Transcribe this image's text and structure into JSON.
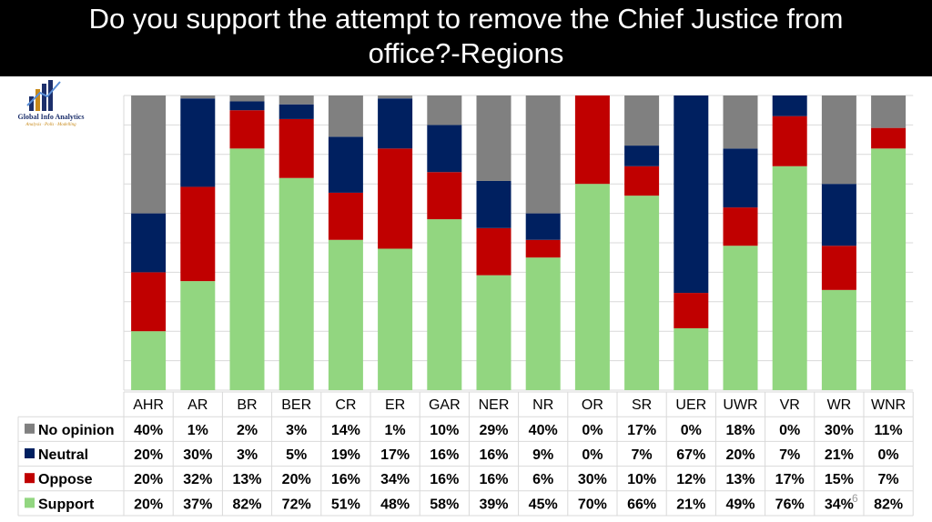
{
  "title": {
    "line1": "Do you support the attempt to remove the Chief Justice from",
    "line2": "office?-Regions"
  },
  "logo": {
    "name": "Global Info Analytics",
    "tagline": "Analysis · Polls · Modelling"
  },
  "page_number": "6",
  "colors": {
    "support": "#92d680",
    "oppose": "#c00000",
    "neutral": "#002060",
    "no_opinion": "#808080",
    "gridline": "#d9d9d9",
    "title_bg": "#000000"
  },
  "chart_data": {
    "type": "bar",
    "stacked": true,
    "percent_stacked": true,
    "title": "Do you support the attempt to remove the Chief Justice from office?-Regions",
    "categories": [
      "AHR",
      "AR",
      "BR",
      "BER",
      "CR",
      "ER",
      "GAR",
      "NER",
      "NR",
      "OR",
      "SR",
      "UER",
      "UWR",
      "VR",
      "WR",
      "WNR"
    ],
    "series": [
      {
        "name": "Support",
        "color": "#92d680",
        "values": [
          20,
          37,
          82,
          72,
          51,
          48,
          58,
          39,
          45,
          70,
          66,
          21,
          49,
          76,
          34,
          82
        ]
      },
      {
        "name": "Oppose",
        "color": "#c00000",
        "values": [
          20,
          32,
          13,
          20,
          16,
          34,
          16,
          16,
          6,
          30,
          10,
          12,
          13,
          17,
          15,
          7
        ]
      },
      {
        "name": "Neutral",
        "color": "#002060",
        "values": [
          20,
          30,
          3,
          5,
          19,
          17,
          16,
          16,
          9,
          0,
          7,
          67,
          20,
          7,
          21,
          0
        ]
      },
      {
        "name": "No opinion",
        "color": "#808080",
        "values": [
          40,
          1,
          2,
          3,
          14,
          1,
          10,
          29,
          40,
          0,
          17,
          0,
          18,
          0,
          30,
          11
        ]
      }
    ],
    "table": {
      "header_order": [
        "No opinion",
        "Neutral",
        "Oppose",
        "Support"
      ],
      "rows": {
        "No opinion": [
          "40%",
          "1%",
          "2%",
          "3%",
          "14%",
          "1%",
          "10%",
          "29%",
          "40%",
          "0%",
          "17%",
          "0%",
          "18%",
          "0%",
          "30%",
          "11%"
        ],
        "Neutral": [
          "20%",
          "30%",
          "3%",
          "5%",
          "19%",
          "17%",
          "16%",
          "16%",
          "9%",
          "0%",
          "7%",
          "67%",
          "20%",
          "7%",
          "21%",
          "0%"
        ],
        "Oppose": [
          "20%",
          "32%",
          "13%",
          "20%",
          "16%",
          "34%",
          "16%",
          "16%",
          "6%",
          "30%",
          "10%",
          "12%",
          "13%",
          "17%",
          "15%",
          "7%"
        ],
        "Support": [
          "20%",
          "37%",
          "82%",
          "72%",
          "51%",
          "48%",
          "58%",
          "39%",
          "45%",
          "70%",
          "66%",
          "21%",
          "49%",
          "76%",
          "34%",
          "82%"
        ]
      }
    },
    "ylim": [
      0,
      100
    ],
    "grid": true,
    "legend": "data-table"
  }
}
